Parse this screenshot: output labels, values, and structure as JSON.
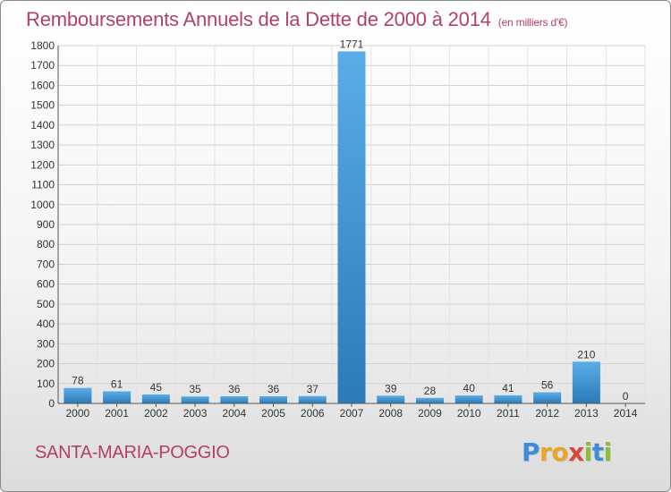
{
  "chart_data": {
    "type": "bar",
    "title": "Remboursements Annuels de la Dette de 2000 à 2014",
    "unit_note": "(en milliers d'€)",
    "categories": [
      "2000",
      "2001",
      "2002",
      "2003",
      "2004",
      "2005",
      "2006",
      "2007",
      "2008",
      "2009",
      "2010",
      "2011",
      "2012",
      "2013",
      "2014"
    ],
    "values": [
      78,
      61,
      45,
      35,
      36,
      36,
      37,
      1771,
      39,
      28,
      40,
      41,
      56,
      210,
      0
    ],
    "ylim": [
      0,
      1800
    ],
    "yticks": [
      0,
      100,
      200,
      300,
      400,
      500,
      600,
      700,
      800,
      900,
      1000,
      1100,
      1200,
      1300,
      1400,
      1500,
      1600,
      1700,
      1800
    ],
    "grid": true,
    "colors": {
      "bar_light": "#5aade6",
      "bar_dark": "#2b7ab9",
      "title": "#b2406a"
    }
  },
  "commune": "SANTA-MARIA-POGGIO",
  "logo": {
    "letters": [
      {
        "ch": "P",
        "color": "#3c8fd6"
      },
      {
        "ch": "r",
        "color": "#e8a52a"
      },
      {
        "ch": "o",
        "color": "#e8a52a"
      },
      {
        "ch": "x",
        "color": "#d64a3c"
      },
      {
        "ch": "i",
        "color": "#8cbd3a"
      },
      {
        "ch": "t",
        "color": "#3c8fd6"
      },
      {
        "ch": "i",
        "color": "#8cbd3a"
      }
    ]
  }
}
